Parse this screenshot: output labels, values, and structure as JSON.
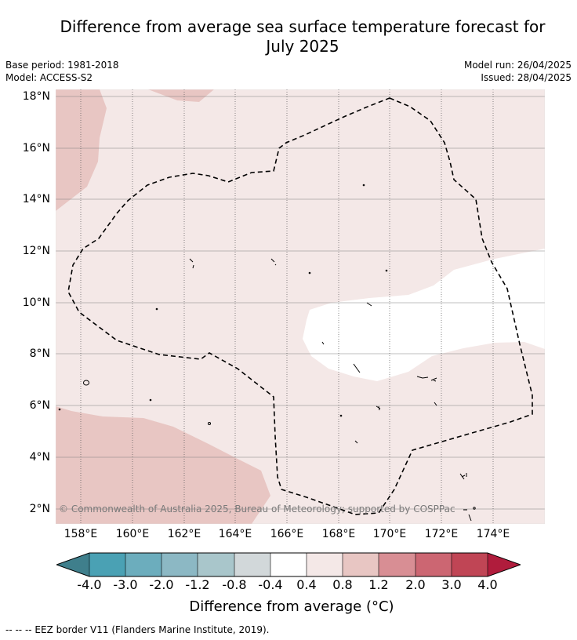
{
  "title_line1": "Difference from average sea surface temperature forecast for",
  "title_line2": "July 2025",
  "base_period": "Base period: 1981-2018",
  "model": "Model: ACCESS-S2",
  "model_run": "Model run: 26/04/2025",
  "issued": "Issued: 28/04/2025",
  "lat_labels": [
    "18°N",
    "16°N",
    "14°N",
    "12°N",
    "10°N",
    "8°N",
    "6°N",
    "4°N",
    "2°N"
  ],
  "lon_labels": [
    "158°E",
    "160°E",
    "162°E",
    "164°E",
    "166°E",
    "168°E",
    "170°E",
    "172°E",
    "174°E"
  ],
  "copyright": "© Commonwealth of Australia 2025, Bureau of Meteorology; supported by COSPPac",
  "colorbar": {
    "ticks": [
      "-4.0",
      "-3.0",
      "-2.0",
      "-1.2",
      "-0.8",
      "-0.4",
      "0.4",
      "0.8",
      "1.2",
      "2.0",
      "3.0",
      "4.0"
    ],
    "colors": {
      "below_min": "#3f7f8c",
      "bins": [
        "#4aa1b4",
        "#6cadbd",
        "#8cb8c4",
        "#a9c6cb",
        "#d2d8da",
        "#ffffff",
        "#f4e8e7",
        "#e8c6c3",
        "#d88e94",
        "#cc6672",
        "#c04555"
      ],
      "above_max": "#b01c3c"
    },
    "title": "Difference from average (°C)"
  },
  "footnote": "--  --  -- EEZ border V11 (Flanders Marine Institute, 2019)."
}
